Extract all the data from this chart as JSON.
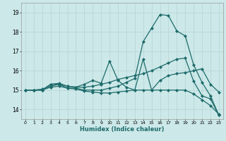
{
  "xlabel": "Humidex (Indice chaleur)",
  "bg_color": "#cce8e8",
  "grid_color": "#b8d8d8",
  "line_color": "#1e6b6b",
  "xlim": [
    -0.5,
    23.5
  ],
  "ylim": [
    13.5,
    19.5
  ],
  "yticks": [
    14,
    15,
    16,
    17,
    18,
    19
  ],
  "xticks": [
    0,
    1,
    2,
    3,
    4,
    5,
    6,
    7,
    8,
    9,
    10,
    11,
    12,
    13,
    14,
    15,
    16,
    17,
    18,
    19,
    20,
    21,
    22,
    23
  ],
  "lines": [
    {
      "x": [
        0,
        1,
        2,
        3,
        4,
        5,
        6,
        7,
        8,
        9,
        10,
        11,
        12,
        13,
        14,
        15,
        16,
        17,
        18,
        19,
        20,
        21,
        22,
        23
      ],
      "y": [
        15.0,
        15.0,
        15.0,
        15.3,
        15.3,
        15.1,
        15.1,
        15.0,
        15.0,
        15.0,
        15.1,
        15.2,
        15.4,
        15.6,
        17.5,
        18.2,
        18.9,
        18.85,
        18.05,
        17.8,
        16.3,
        15.4,
        14.7,
        13.7
      ]
    },
    {
      "x": [
        0,
        1,
        2,
        3,
        4,
        5,
        6,
        7,
        8,
        9,
        10,
        11,
        12,
        13,
        14,
        15,
        16,
        17,
        18,
        19,
        20,
        21,
        22,
        23
      ],
      "y": [
        15.0,
        15.0,
        15.0,
        15.3,
        15.35,
        15.2,
        15.15,
        15.3,
        15.5,
        15.35,
        16.5,
        15.5,
        15.15,
        15.0,
        16.6,
        15.0,
        15.5,
        15.75,
        15.85,
        15.9,
        16.0,
        16.1,
        15.3,
        14.9
      ]
    },
    {
      "x": [
        0,
        1,
        2,
        3,
        4,
        5,
        6,
        7,
        8,
        9,
        10,
        11,
        12,
        13,
        14,
        15,
        16,
        17,
        18,
        19,
        20,
        21,
        22,
        23
      ],
      "y": [
        15.0,
        15.0,
        15.05,
        15.2,
        15.3,
        15.2,
        15.15,
        15.15,
        15.2,
        15.3,
        15.4,
        15.55,
        15.65,
        15.75,
        15.85,
        16.0,
        16.2,
        16.4,
        16.6,
        16.65,
        15.45,
        14.7,
        14.55,
        13.7
      ]
    },
    {
      "x": [
        0,
        1,
        2,
        3,
        4,
        5,
        6,
        7,
        8,
        9,
        10,
        11,
        12,
        13,
        14,
        15,
        16,
        17,
        18,
        19,
        20,
        21,
        22,
        23
      ],
      "y": [
        15.0,
        15.0,
        15.0,
        15.15,
        15.2,
        15.1,
        15.05,
        14.95,
        14.9,
        14.85,
        14.85,
        14.9,
        14.95,
        15.0,
        15.0,
        15.0,
        15.0,
        15.0,
        15.0,
        15.0,
        14.8,
        14.5,
        14.2,
        13.75
      ]
    }
  ],
  "marker": "D",
  "markersize": 2.0,
  "linewidth": 0.9
}
